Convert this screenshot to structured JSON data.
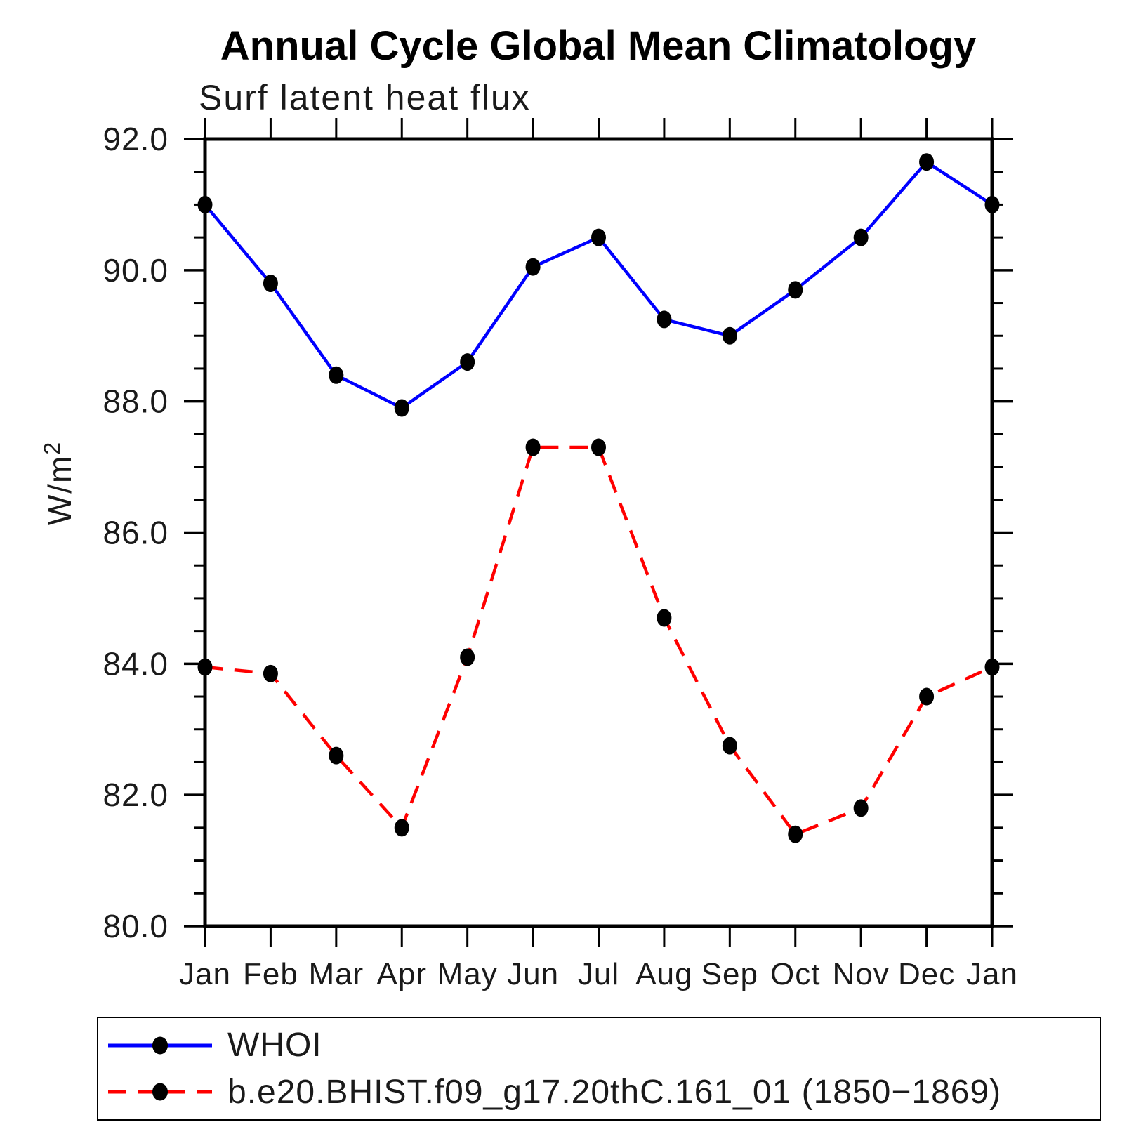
{
  "chart_data": {
    "type": "line",
    "title": "Annual Cycle Global Mean Climatology",
    "subtitle": "Surf latent heat flux",
    "ylabel": "W/m2",
    "ylabel_base": "W/m",
    "ylabel_exp": "2",
    "categories": [
      "Jan",
      "Feb",
      "Mar",
      "Apr",
      "May",
      "Jun",
      "Jul",
      "Aug",
      "Sep",
      "Oct",
      "Nov",
      "Dec",
      "Jan"
    ],
    "ylim": [
      80.0,
      92.0
    ],
    "y_major_ticks": [
      {
        "value": 92.0,
        "label": "92.0"
      },
      {
        "value": 90.0,
        "label": "90.0"
      },
      {
        "value": 88.0,
        "label": "88.0"
      },
      {
        "value": 86.0,
        "label": "86.0"
      },
      {
        "value": 84.0,
        "label": "84.0"
      },
      {
        "value": 82.0,
        "label": "82.0"
      },
      {
        "value": 80.0,
        "label": "80.0"
      }
    ],
    "y_minor_step": 0.5,
    "grid": false,
    "legend_position": "bottom-left",
    "series": [
      {
        "name": "WHOI",
        "color": "#0000ff",
        "line_style": "solid",
        "marker": "filled-circle",
        "marker_color": "#000000",
        "values": [
          91.0,
          89.8,
          88.4,
          87.9,
          88.6,
          90.05,
          90.5,
          89.25,
          89.0,
          89.7,
          90.5,
          91.65,
          91.0
        ]
      },
      {
        "name": "b.e20.BHIST.f09_g17.20thC.161_01 (1850−1869)",
        "color": "#ff0000",
        "line_style": "dashed",
        "marker": "filled-circle",
        "marker_color": "#000000",
        "values": [
          83.95,
          83.85,
          82.6,
          81.5,
          84.1,
          87.3,
          87.3,
          84.7,
          82.75,
          81.4,
          81.8,
          83.5,
          83.95
        ]
      }
    ]
  }
}
